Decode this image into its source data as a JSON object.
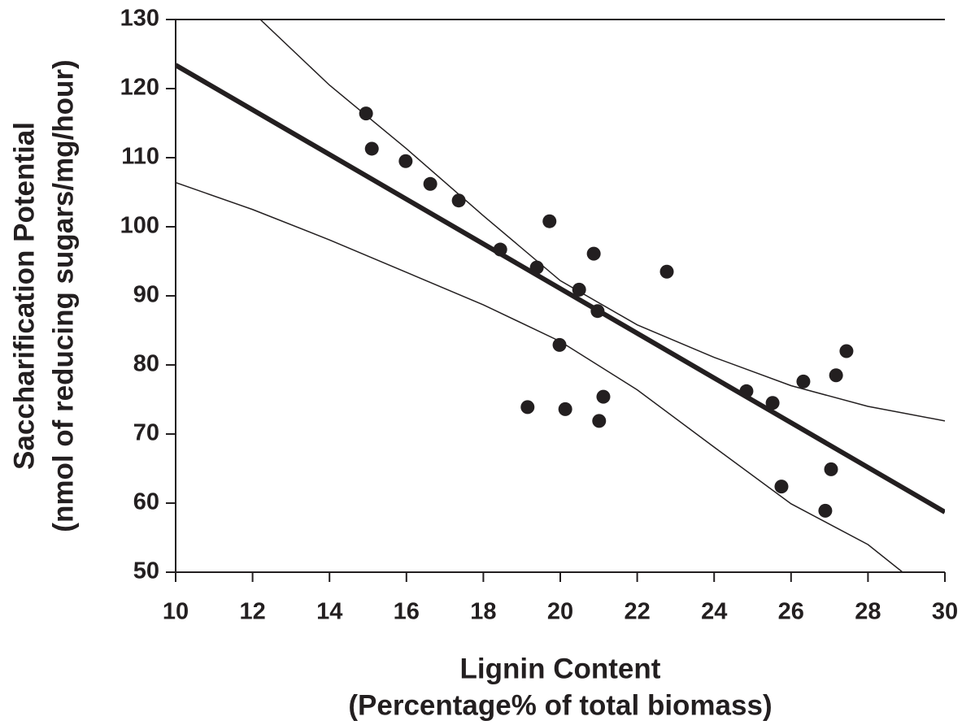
{
  "chart_data": {
    "type": "scatter",
    "x_label": [
      "Lignin Content",
      "(Percentage% of total biomass)"
    ],
    "y_label": [
      "Saccharification Potential",
      "(nmol of reducing sugars/mg/hour)"
    ],
    "xlim": [
      10,
      30
    ],
    "xticks": [
      10,
      12,
      14,
      16,
      18,
      20,
      22,
      24,
      26,
      28,
      30
    ],
    "ylim": [
      50,
      130
    ],
    "yticks": [
      50,
      60,
      70,
      80,
      90,
      100,
      110,
      120,
      130
    ],
    "series": [
      {
        "type": "scatter",
        "color": "#231f20",
        "x": [
          14.95,
          15.1,
          15.98,
          16.62,
          17.36,
          18.44,
          19.39,
          19.72,
          20.87,
          20.49,
          20.97,
          19.98,
          19.15,
          20.13,
          21.01,
          21.12,
          22.77,
          24.84,
          25.52,
          26.32,
          27.17,
          27.44,
          25.75,
          27.04,
          26.89
        ],
        "values": [
          116.4,
          111.3,
          109.5,
          106.2,
          103.8,
          96.7,
          94.1,
          100.8,
          96.1,
          90.9,
          87.8,
          82.9,
          73.9,
          73.6,
          71.9,
          75.4,
          93.5,
          76.2,
          74.5,
          77.6,
          78.5,
          82.0,
          62.4,
          64.9,
          58.9
        ]
      },
      {
        "type": "line",
        "color": "#231f20",
        "width": 6,
        "x": [
          10,
          30
        ],
        "values": [
          123.4,
          58.7
        ]
      },
      {
        "type": "line",
        "color": "#231f20",
        "width": 1.5,
        "x": [
          12.2,
          14,
          16,
          18,
          20,
          22,
          24,
          26,
          28,
          30
        ],
        "values": [
          130,
          120.5,
          111.3,
          101.6,
          92.2,
          85.8,
          81.1,
          77,
          74,
          71.9
        ]
      },
      {
        "type": "line",
        "color": "#231f20",
        "width": 1.5,
        "x": [
          10,
          12,
          14,
          16,
          18,
          20,
          22,
          24,
          26,
          28,
          28.9
        ],
        "values": [
          106.4,
          102.5,
          98.1,
          93.4,
          88.7,
          83.4,
          76.4,
          68.1,
          59.9,
          54,
          50
        ]
      }
    ]
  }
}
